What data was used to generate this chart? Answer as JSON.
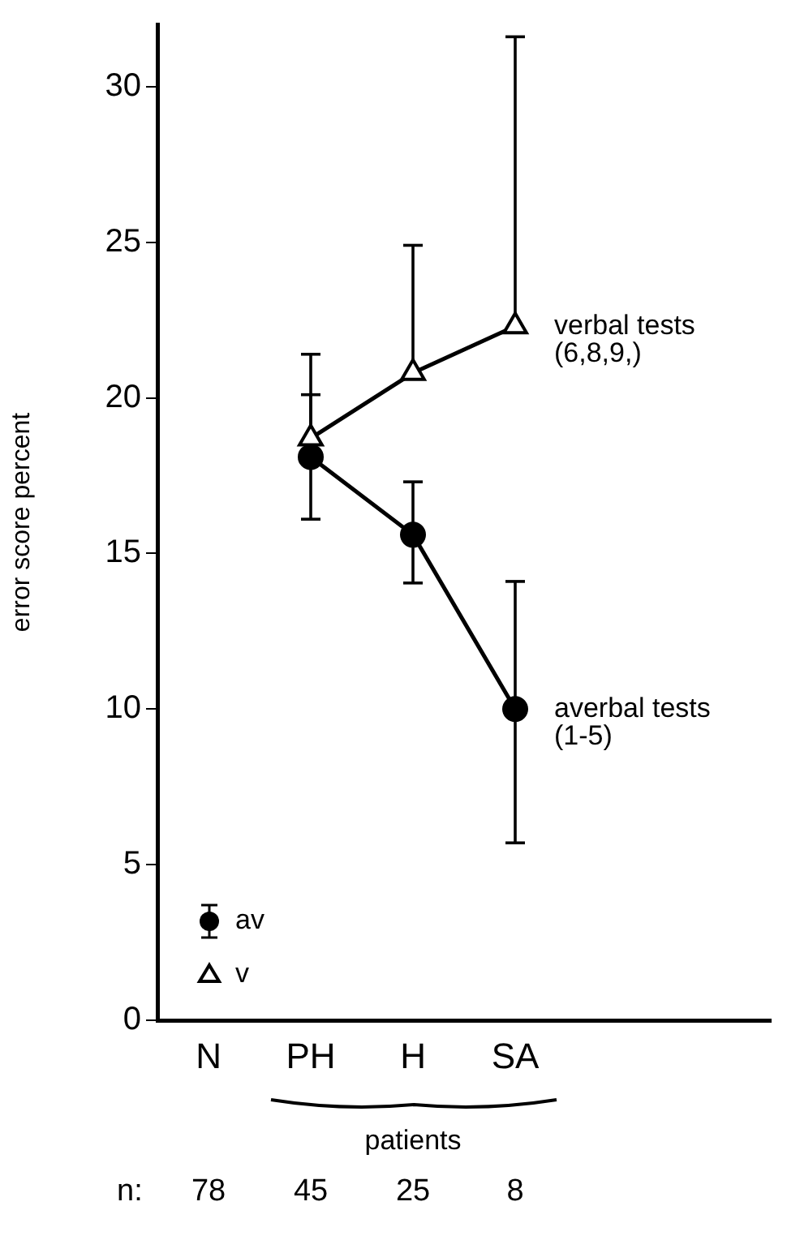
{
  "chart_data": {
    "type": "line",
    "ylabel": "error score percent",
    "categories": [
      "N",
      "PH",
      "H",
      "SA"
    ],
    "series": [
      {
        "name": "av",
        "color": "#000000",
        "marker": "circle",
        "values": [
          null,
          18.1,
          15.6,
          10.0
        ],
        "errors": [
          null,
          [
            16.1,
            20.1
          ],
          [
            14.05,
            17.3
          ],
          [
            5.7,
            14.1
          ]
        ]
      },
      {
        "name": "v",
        "color": "#000000",
        "marker": "triangle",
        "values": [
          null,
          18.7,
          20.8,
          22.3
        ],
        "errors": [
          null,
          [
            18.7,
            21.4
          ],
          [
            20.8,
            24.9
          ],
          [
            22.3,
            31.6
          ]
        ]
      }
    ],
    "ylim": [
      0,
      32
    ],
    "yticks": [
      0,
      5,
      10,
      15,
      20,
      25,
      30
    ],
    "grid": false,
    "legend": "bottom left",
    "line_style": "solid",
    "annotations": [
      {
        "text": "verbal tests\n(6,8,9,)",
        "x": "SA",
        "y": 22.3
      },
      {
        "text": "averbal tests\n(1-5)",
        "x": "SA",
        "y": 10.0
      },
      "patients",
      "n:",
      "78",
      "45",
      "25",
      "8"
    ]
  }
}
